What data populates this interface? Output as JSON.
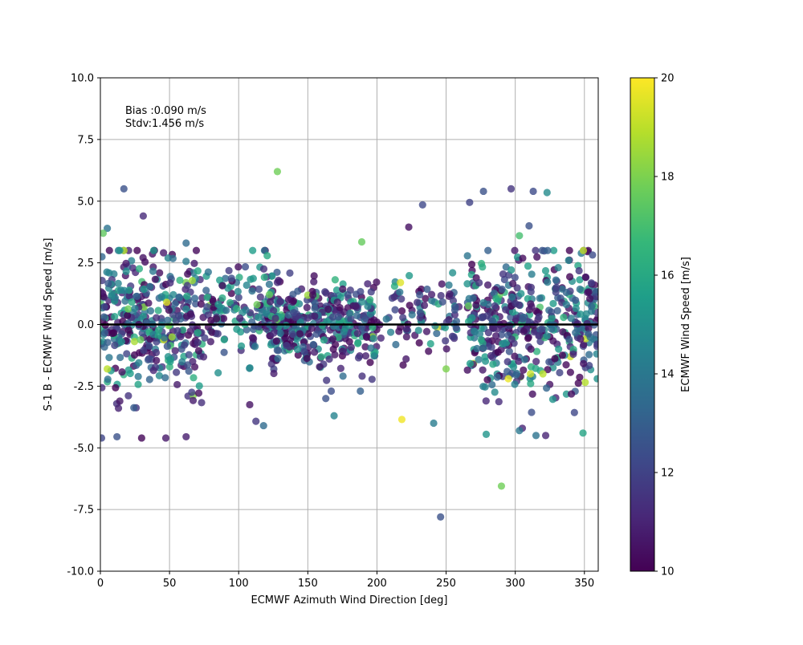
{
  "chart_data": {
    "type": "scatter",
    "xlabel": "ECMWF Azimuth Wind Direction [deg]",
    "ylabel": "S-1 B - ECMWF Wind Speed [m/s]",
    "xlim": [
      0,
      360
    ],
    "ylim": [
      -10,
      10
    ],
    "xticks": [
      0,
      50,
      100,
      150,
      200,
      250,
      300,
      350
    ],
    "yticks": [
      -10.0,
      -7.5,
      -5.0,
      -2.5,
      0.0,
      2.5,
      5.0,
      7.5,
      10.0
    ],
    "grid": true,
    "annotations": [
      "Bias :0.090 m/s",
      "Stdv:1.456 m/s"
    ],
    "reference_line_y": 0.0,
    "colorbar": {
      "label": "ECMWF Wind Speed [m/s]",
      "min": 10,
      "max": 20,
      "ticks": [
        10,
        12,
        14,
        16,
        18,
        20
      ],
      "colormap": "viridis",
      "colors": [
        "#440154",
        "#482878",
        "#3e4989",
        "#31688e",
        "#26828e",
        "#1f9e89",
        "#35b779",
        "#6ece58",
        "#b5de2b",
        "#fde725"
      ]
    },
    "clusters": [
      {
        "x_range": [
          0,
          75
        ],
        "y_mean": 0.0,
        "y_sd": 1.4,
        "count": 380
      },
      {
        "x_range": [
          75,
          130
        ],
        "y_mean": 0.5,
        "y_sd": 1.1,
        "count": 150
      },
      {
        "x_range": [
          120,
          200
        ],
        "y_mean": 0.0,
        "y_sd": 0.8,
        "count": 380
      },
      {
        "x_range": [
          200,
          260
        ],
        "y_mean": 0.4,
        "y_sd": 0.9,
        "count": 90
      },
      {
        "x_range": [
          265,
          360
        ],
        "y_mean": 0.0,
        "y_sd": 1.4,
        "count": 450
      }
    ],
    "highlighted_points": [
      {
        "x": 17,
        "y": 5.5,
        "speed": 12.5
      },
      {
        "x": 31,
        "y": 4.4,
        "speed": 11.2
      },
      {
        "x": 5,
        "y": 3.9,
        "speed": 13.8
      },
      {
        "x": 2,
        "y": 3.7,
        "speed": 17.5
      },
      {
        "x": 62,
        "y": 3.3,
        "speed": 13.5
      },
      {
        "x": 128,
        "y": 6.2,
        "speed": 17.8
      },
      {
        "x": 189,
        "y": 3.35,
        "speed": 17.6
      },
      {
        "x": 223,
        "y": 3.95,
        "speed": 10.4
      },
      {
        "x": 233,
        "y": 4.85,
        "speed": 12.2
      },
      {
        "x": 267,
        "y": 4.95,
        "speed": 12.0
      },
      {
        "x": 277,
        "y": 5.4,
        "speed": 12.5
      },
      {
        "x": 297,
        "y": 5.5,
        "speed": 11.5
      },
      {
        "x": 313,
        "y": 5.4,
        "speed": 12.3
      },
      {
        "x": 323,
        "y": 5.35,
        "speed": 14.8
      },
      {
        "x": 310,
        "y": 4.0,
        "speed": 12.5
      },
      {
        "x": 303,
        "y": 3.6,
        "speed": 17.0
      },
      {
        "x": 217,
        "y": 1.7,
        "speed": 19.5
      },
      {
        "x": 250,
        "y": -1.8,
        "speed": 18.0
      },
      {
        "x": 218,
        "y": -3.85,
        "speed": 19.8
      },
      {
        "x": 290,
        "y": -6.55,
        "speed": 17.8
      },
      {
        "x": 246,
        "y": -7.8,
        "speed": 12.5
      },
      {
        "x": 241,
        "y": -4.0,
        "speed": 14.2
      },
      {
        "x": 279,
        "y": -4.45,
        "speed": 15.2
      },
      {
        "x": 349,
        "y": -4.4,
        "speed": 15.8
      },
      {
        "x": 62,
        "y": -4.55,
        "speed": 10.8
      },
      {
        "x": 12,
        "y": -4.55,
        "speed": 12.5
      },
      {
        "x": 118,
        "y": -4.1,
        "speed": 13.5
      },
      {
        "x": 169,
        "y": -3.7,
        "speed": 14.5
      },
      {
        "x": 163,
        "y": -3.0,
        "speed": 12.5
      },
      {
        "x": 108,
        "y": -3.25,
        "speed": 10.5
      },
      {
        "x": 188,
        "y": -2.7,
        "speed": 13.0
      },
      {
        "x": 315,
        "y": -4.5,
        "speed": 13.8
      },
      {
        "x": 322,
        "y": -4.5,
        "speed": 11.0
      },
      {
        "x": 303,
        "y": -4.3,
        "speed": 14.0
      },
      {
        "x": 320,
        "y": -2.0,
        "speed": 19.0
      },
      {
        "x": 311,
        "y": -2.0,
        "speed": 19.2
      },
      {
        "x": 295,
        "y": -2.2,
        "speed": 19.7
      },
      {
        "x": 48,
        "y": 0.9,
        "speed": 19.5
      },
      {
        "x": 5,
        "y": -1.8,
        "speed": 19.0
      }
    ]
  }
}
